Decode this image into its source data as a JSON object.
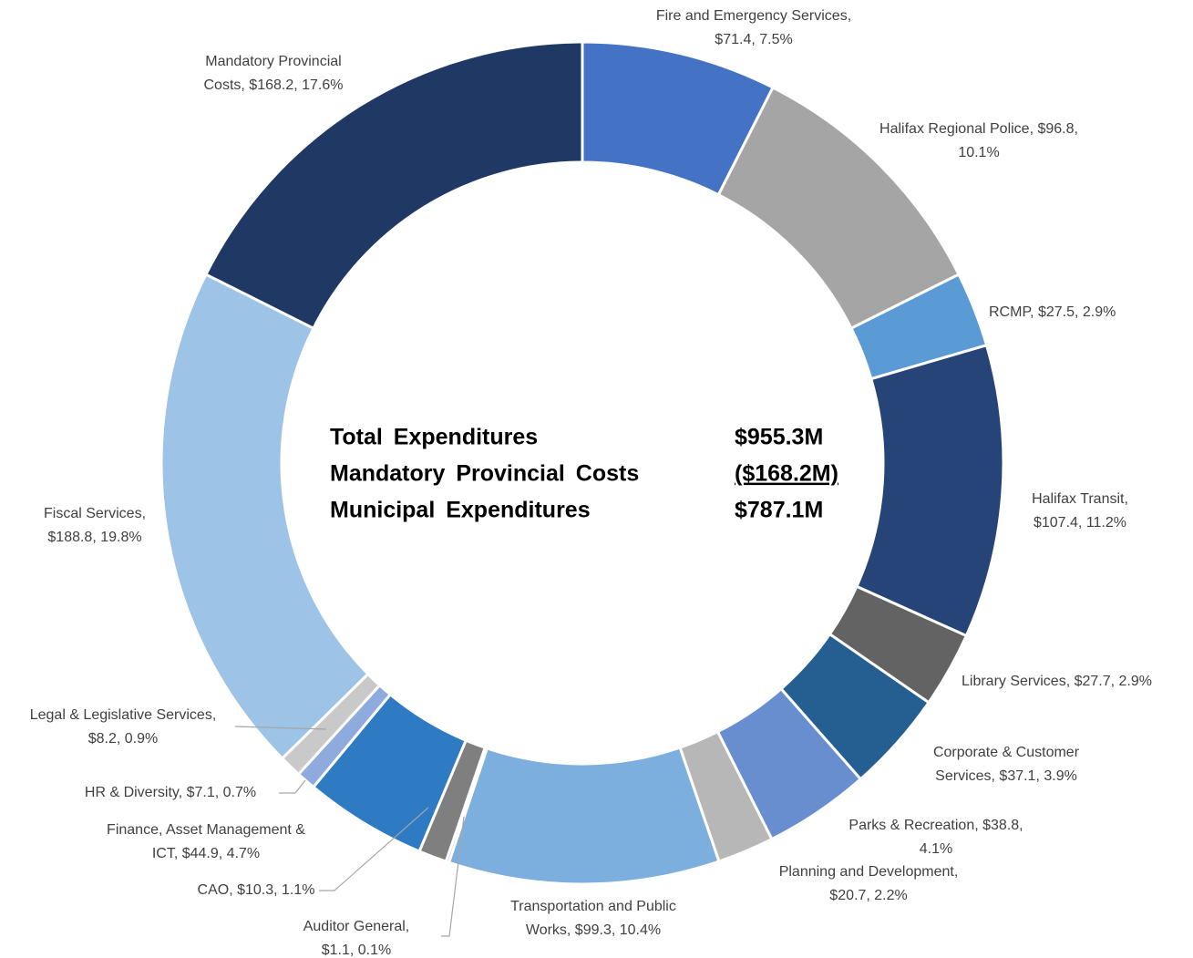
{
  "chart_data": {
    "type": "doughnut",
    "values": [
      71.4,
      96.8,
      27.5,
      107.4,
      27.7,
      37.1,
      38.8,
      20.7,
      99.3,
      1.1,
      10.3,
      44.9,
      7.1,
      8.2,
      188.8,
      168.2
    ],
    "value_labels": [
      [
        "Fire and Emergency Services,",
        "$71.4, 7.5%"
      ],
      [
        "Halifax Regional Police, $96.8,",
        "10.1%"
      ],
      [
        "RCMP, $27.5, 2.9%"
      ],
      [
        "Halifax Transit,",
        "$107.4, 11.2%"
      ],
      [
        "Library Services, $27.7, 2.9%"
      ],
      [
        "Corporate & Customer",
        "Services, $37.1, 3.9%"
      ],
      [
        "Parks & Recreation, $38.8,",
        "4.1%"
      ],
      [
        "Planning and Development,",
        "$20.7, 2.2%"
      ],
      [
        "Transportation and Public",
        "Works, $99.3, 10.4%"
      ],
      [
        "Auditor General,",
        "$1.1, 0.1%"
      ],
      [
        "CAO, $10.3, 1.1%"
      ],
      [
        "Finance, Asset Management &",
        "ICT, $44.9, 4.7%"
      ],
      [
        "HR & Diversity, $7.1, 0.7%"
      ],
      [
        "Legal & Legislative Services,",
        "$8.2, 0.9%"
      ],
      [
        "Fiscal Services,",
        "$188.8, 19.8%"
      ],
      [
        "Mandatory Provincial",
        "Costs, $168.2, 17.6%"
      ]
    ],
    "colors": [
      "#4472c4",
      "#a5a5a5",
      "#5b9bd5",
      "#264478",
      "#636363",
      "#255e91",
      "#698ed0",
      "#b7b7b7",
      "#7cafdd",
      "#848484",
      "#7f7f7f",
      "#2e7bc4",
      "#8faadc",
      "#c9c9c9",
      "#9dc3e6",
      "#203864"
    ],
    "center_table": [
      [
        "Total Expenditures",
        "$955.3M"
      ],
      [
        "Mandatory Provincial Costs",
        "($168.2M)"
      ],
      [
        "Municipal Expenditures",
        "$787.1M"
      ]
    ]
  }
}
